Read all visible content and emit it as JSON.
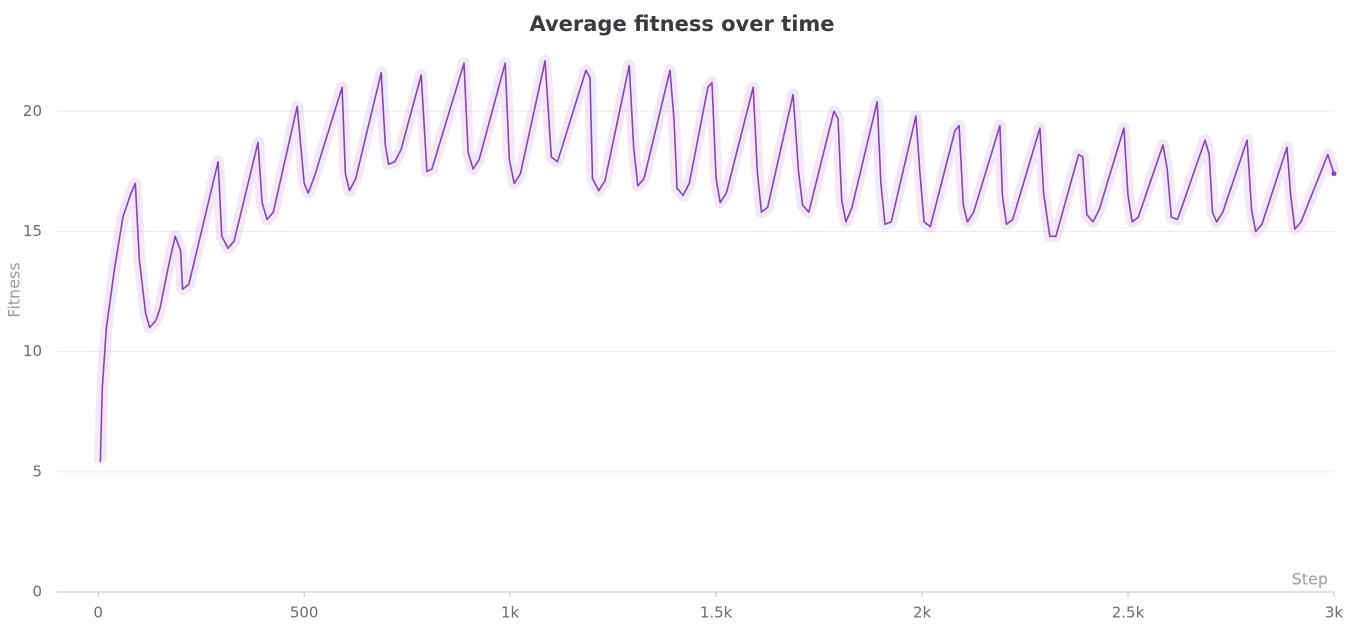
{
  "chart_data": {
    "type": "line",
    "title": "Average fitness over time",
    "x_label": "Step",
    "y_label": "Fitness",
    "xlim": [
      -100,
      3000
    ],
    "ylim": [
      0,
      22.8
    ],
    "xticks": [
      0,
      500,
      {
        "value": 1000,
        "label": "1k"
      },
      {
        "value": 1500,
        "label": "1.5k"
      },
      {
        "value": 2000,
        "label": "2k"
      },
      {
        "value": 2500,
        "label": "2.5k"
      },
      {
        "value": 3000,
        "label": "3k"
      }
    ],
    "yticks": [
      0,
      5,
      10,
      15,
      20
    ],
    "grid": true,
    "x": [
      5,
      10,
      20,
      40,
      60,
      80,
      90,
      100,
      115,
      125,
      140,
      150,
      170,
      187,
      200,
      205,
      220,
      291,
      300,
      315,
      330,
      388,
      398,
      410,
      425,
      483,
      500,
      510,
      525,
      592,
      600,
      610,
      625,
      687,
      697,
      705,
      720,
      735,
      784,
      798,
      810,
      888,
      898,
      910,
      925,
      988,
      998,
      1010,
      1025,
      1085,
      1100,
      1115,
      1184,
      1194,
      1200,
      1215,
      1230,
      1289,
      1300,
      1310,
      1325,
      1388,
      1398,
      1405,
      1420,
      1435,
      1480,
      1490,
      1500,
      1510,
      1525,
      1590,
      1600,
      1610,
      1625,
      1687,
      1700,
      1710,
      1725,
      1786,
      1796,
      1805,
      1815,
      1830,
      1891,
      1900,
      1910,
      1925,
      1985,
      1995,
      2005,
      2020,
      2080,
      2090,
      2100,
      2110,
      2125,
      2189,
      2195,
      2205,
      2220,
      2286,
      2295,
      2310,
      2325,
      2380,
      2390,
      2400,
      2415,
      2430,
      2490,
      2500,
      2510,
      2525,
      2585,
      2595,
      2605,
      2620,
      2687,
      2697,
      2705,
      2715,
      2730,
      2789,
      2800,
      2810,
      2825,
      2886,
      2895,
      2905,
      2920,
      2985,
      3000
    ],
    "series": [
      {
        "name": "Fitness",
        "color": "#8a3fc7",
        "values": [
          5.4,
          8.5,
          11,
          13.5,
          15.6,
          16.6,
          17.0,
          13.8,
          11.6,
          11.0,
          11.3,
          11.8,
          13.5,
          14.8,
          14.2,
          12.6,
          12.8,
          17.9,
          14.8,
          14.3,
          14.6,
          18.7,
          16.2,
          15.5,
          15.8,
          20.2,
          17.0,
          16.6,
          17.3,
          21.0,
          17.4,
          16.7,
          17.2,
          21.6,
          18.6,
          17.8,
          17.9,
          18.4,
          21.5,
          17.5,
          17.6,
          22.0,
          18.3,
          17.6,
          18.0,
          22.0,
          18.0,
          17.0,
          17.4,
          22.1,
          18.1,
          17.9,
          21.7,
          21.4,
          17.2,
          16.7,
          17.1,
          21.9,
          18.5,
          16.9,
          17.2,
          21.7,
          19.6,
          16.8,
          16.5,
          17.0,
          21.0,
          21.2,
          17.2,
          16.2,
          16.6,
          21.0,
          17.5,
          15.8,
          16.0,
          20.7,
          17.5,
          16.1,
          15.8,
          20.0,
          19.7,
          16.3,
          15.4,
          16.0,
          20.4,
          17.0,
          15.3,
          15.4,
          19.8,
          17.4,
          15.4,
          15.2,
          19.2,
          19.4,
          16.1,
          15.4,
          15.8,
          19.4,
          16.5,
          15.3,
          15.5,
          19.3,
          16.6,
          14.8,
          14.8,
          18.2,
          18.1,
          15.7,
          15.4,
          15.9,
          19.3,
          16.5,
          15.4,
          15.6,
          18.6,
          17.6,
          15.6,
          15.5,
          18.8,
          18.2,
          15.8,
          15.4,
          15.8,
          18.8,
          15.9,
          15.0,
          15.3,
          18.5,
          16.5,
          15.1,
          15.4,
          18.2,
          17.4
        ]
      }
    ]
  }
}
